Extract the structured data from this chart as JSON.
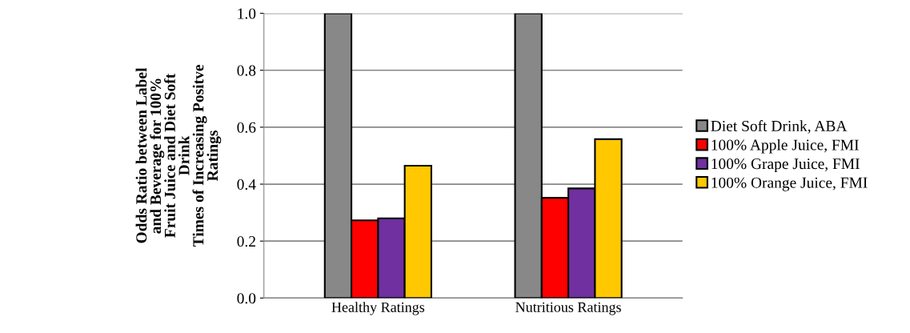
{
  "chart_data": {
    "type": "bar",
    "ylabel": "Odds Ratio between Label\nand Beverage for 100%\nFruit Juice and Diet Soft\nDrink\nTimes of Increasing Positve\nRatings",
    "categories": [
      "Healthy Ratings",
      "Nutritious Ratings"
    ],
    "series": [
      {
        "name": "Diet Soft Drink, ABA",
        "color": "#888888",
        "values": [
          1.0,
          1.0
        ]
      },
      {
        "name": "100% Apple Juice, FMI",
        "color": "#ff0000",
        "values": [
          0.273,
          0.352
        ]
      },
      {
        "name": "100% Grape Juice, FMI",
        "color": "#7030a0",
        "values": [
          0.28,
          0.385
        ]
      },
      {
        "name": "100% Orange Juice, FMI",
        "color": "#ffc800",
        "values": [
          0.465,
          0.558
        ]
      }
    ],
    "ylim": [
      0,
      1.0
    ],
    "yticks": [
      {
        "value": 0,
        "label": "0.0"
      },
      {
        "value": 0.2,
        "label": "0.2"
      },
      {
        "value": 0.4,
        "label": "0.4"
      },
      {
        "value": 0.6,
        "label": "0.6"
      },
      {
        "value": 0.8,
        "label": "0.8"
      },
      {
        "value": 1.0,
        "label": "1.0"
      }
    ],
    "grid": "y",
    "legend": "right"
  }
}
